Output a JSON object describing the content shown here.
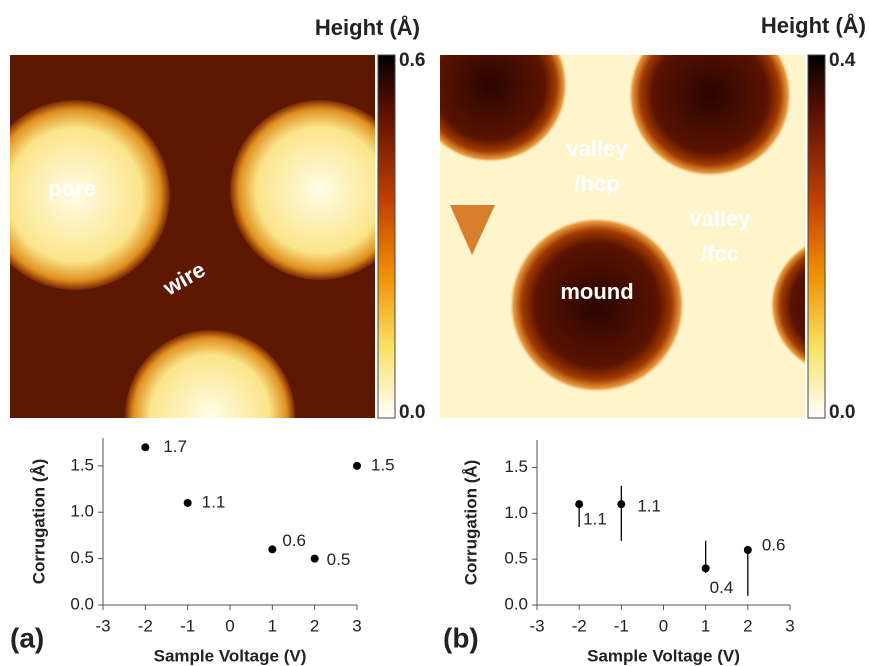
{
  "images": [
    {
      "title": "Height (Å)",
      "colorbar": [
        {
          "value": 0,
          "label": "0.0"
        },
        {
          "value": 0.6,
          "label": "0.6"
        }
      ],
      "labels": [
        "pore",
        "wire"
      ]
    },
    {
      "title": "Height (Å)",
      "colorbar": [
        {
          "value": 0,
          "label": "0.0"
        },
        {
          "value": 0.4,
          "label": "0.4"
        }
      ],
      "labels": [
        "mound",
        "valley",
        "/hcp",
        "valley",
        "/fcc"
      ]
    }
  ],
  "chart_data": [
    {
      "type": "scatter",
      "panel": "(a)",
      "xlabel": "Sample Voltage (V)",
      "ylabel": "Corrugation (Å)",
      "x": [
        -2,
        -1,
        1,
        2,
        3
      ],
      "values": [
        1.7,
        1.1,
        0.6,
        0.5,
        1.5
      ],
      "color": "#000000",
      "xlim": [
        -3,
        3
      ],
      "xticks": [
        -3,
        -2,
        -1,
        0,
        1,
        2,
        3
      ],
      "ylim": [
        0,
        1.8
      ],
      "yticks": [
        {
          "value": 0,
          "label": "0.0"
        },
        {
          "value": 0.5,
          "label": "0.5"
        },
        {
          "value": 1,
          "label": "1.0"
        },
        {
          "value": 1.5,
          "label": "1.5"
        }
      ]
    },
    {
      "type": "scatter",
      "panel": "(b)",
      "xlabel": "Sample Voltage (V)",
      "ylabel": "Corrugation (Å)",
      "x": [
        -2,
        -1,
        1,
        2
      ],
      "values": [
        1.1,
        1.1,
        0.4,
        0.6
      ],
      "error_low": [
        0.85,
        0.7,
        0.35,
        0.1
      ],
      "error_high": [
        1.1,
        1.3,
        0.7,
        0.6
      ],
      "color": "#000000",
      "xlim": [
        -3,
        3
      ],
      "xticks": [
        -3,
        -2,
        -1,
        0,
        1,
        2,
        3
      ],
      "ylim": [
        0,
        1.8
      ],
      "yticks": [
        {
          "value": 0,
          "label": "0.0"
        },
        {
          "value": 0.5,
          "label": "0.5"
        },
        {
          "value": 1,
          "label": "1.0"
        },
        {
          "value": 1.5,
          "label": "1.5"
        }
      ]
    }
  ]
}
